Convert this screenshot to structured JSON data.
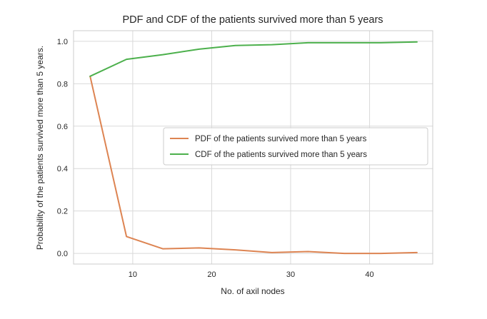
{
  "chart_data": {
    "type": "line",
    "title": "PDF and CDF of the patients survived more than 5 years",
    "xlabel": "No. of axil nodes",
    "ylabel": "Probability of the patients survived more than 5 years.",
    "xlim": [
      2.5,
      48
    ],
    "ylim": [
      -0.05,
      1.05
    ],
    "xticks": [
      10,
      20,
      30,
      40
    ],
    "yticks": [
      0.0,
      0.2,
      0.4,
      0.6,
      0.8,
      1.0
    ],
    "ytick_labels": [
      "0.0",
      "0.2",
      "0.4",
      "0.6",
      "0.8",
      "1.0"
    ],
    "grid": true,
    "legend_position": "center-right",
    "x": [
      4.6,
      9.2,
      13.8,
      18.4,
      23.0,
      27.6,
      32.2,
      36.8,
      41.4,
      46.0
    ],
    "series": [
      {
        "name": "PDF of the patients survived more than 5 years",
        "color": "#dd8452",
        "values": [
          0.835,
          0.08,
          0.022,
          0.026,
          0.017,
          0.004,
          0.009,
          0.0,
          0.0,
          0.004
        ]
      },
      {
        "name": "CDF of the patients survived more than 5 years",
        "color": "#4cb04c",
        "values": [
          0.835,
          0.915,
          0.937,
          0.963,
          0.98,
          0.984,
          0.993,
          0.993,
          0.993,
          0.997
        ]
      }
    ]
  }
}
